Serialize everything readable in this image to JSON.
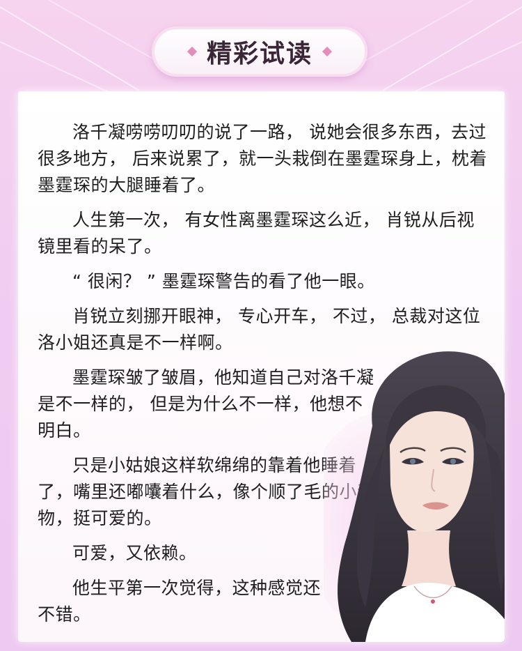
{
  "header": {
    "title": "精彩试读"
  },
  "content": {
    "paragraphs": [
      "洛千凝唠唠叨叨的说了一路， 说她会很多东西，去过很多地方， 后来说累了，就一头栽倒在墨霆琛身上，枕着墨霆琛的大腿睡着了。",
      "人生第一次， 有女性离墨霆琛这么近， 肖锐从后视镜里看的呆了。",
      "“ 很闲？ ” 墨霆琛警告的看了他一眼。",
      "肖锐立刻挪开眼神， 专心开车， 不过， 总裁对这位洛小姐还真是不一样啊。",
      "墨霆琛皱了皱眉，他知道自己对洛千凝是不一样的， 但是为什么不一样，他想不明白。",
      "只是小姑娘这样软绵绵的靠着他睡着了，嘴里还嘟囔着什么，像个顺了毛的小动物，挺可爱的。",
      "可爱，又依赖。",
      "他生平第一次觉得，这种感觉还不错。"
    ]
  },
  "colors": {
    "background": "#f3cff0",
    "accent": "#e48cbc",
    "text": "#1e1e1e"
  },
  "illustration": {
    "icon": "woman-portrait-illustration"
  }
}
